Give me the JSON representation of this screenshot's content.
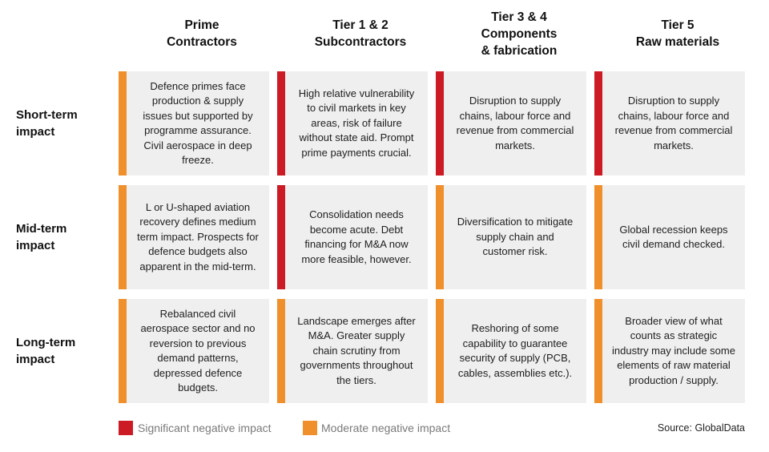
{
  "colors": {
    "significant": "#cc1b25",
    "moderate": "#f0902c"
  },
  "columns": [
    {
      "lines": [
        "Prime",
        "Contractors"
      ]
    },
    {
      "lines": [
        "Tier 1 & 2",
        "Subcontractors"
      ]
    },
    {
      "lines": [
        "Tier 3 & 4",
        "Components",
        "& fabrication"
      ]
    },
    {
      "lines": [
        "Tier 5",
        "Raw materials"
      ]
    }
  ],
  "rows": [
    {
      "label": [
        "Short-term",
        "impact"
      ],
      "cells": [
        {
          "impact": "moderate",
          "text": "Defence primes face production & supply issues but supported by programme assurance. Civil aerospace in deep freeze."
        },
        {
          "impact": "significant",
          "text": "High relative vulnerability to civil markets in key areas, risk of failure without state aid. Prompt prime payments crucial."
        },
        {
          "impact": "significant",
          "text": "Disruption to supply chains, labour force and revenue from commercial markets."
        },
        {
          "impact": "significant",
          "text": "Disruption to supply chains, labour force and revenue from commercial markets."
        }
      ]
    },
    {
      "label": [
        "Mid-term",
        "impact"
      ],
      "cells": [
        {
          "impact": "moderate",
          "text": "L or U-shaped aviation recovery defines medium term impact. Prospects for defence budgets also apparent in the mid-term."
        },
        {
          "impact": "significant",
          "text": "Consolidation needs become acute. Debt financing for M&A now more feasible, however."
        },
        {
          "impact": "moderate",
          "text": "Diversification to mitigate supply chain and customer risk."
        },
        {
          "impact": "moderate",
          "text": "Global recession keeps civil demand checked."
        }
      ]
    },
    {
      "label": [
        "Long-term",
        "impact"
      ],
      "cells": [
        {
          "impact": "moderate",
          "text": "Rebalanced civil aerospace sector and no reversion to previous demand patterns, depressed defence budgets."
        },
        {
          "impact": "moderate",
          "text": "Landscape emerges after M&A. Greater supply chain scrutiny from governments throughout the tiers."
        },
        {
          "impact": "moderate",
          "text": "Reshoring of some capability to guarantee security of supply (PCB, cables, assemblies etc.)."
        },
        {
          "impact": "moderate",
          "text": "Broader view of what counts as strategic industry may include some elements of raw material production / supply."
        }
      ]
    }
  ],
  "legend": {
    "significant_label": "Significant negative impact",
    "moderate_label": "Moderate negative impact"
  },
  "source": "Source: GlobalData"
}
